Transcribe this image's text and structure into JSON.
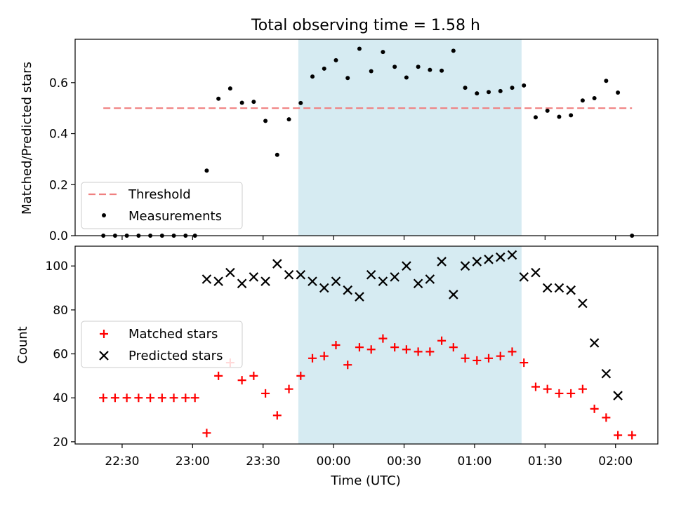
{
  "chart_data": [
    {
      "type": "scatter",
      "title": "Total observing time = 1.58 h",
      "ylabel": "Matched/Predicted stars",
      "xlabel": "",
      "ylim": [
        0,
        0.77
      ],
      "yticks": [
        0.0,
        0.2,
        0.4,
        0.6
      ],
      "ytick_labels": [
        "0.0",
        "0.2",
        "0.4",
        "0.6"
      ],
      "shaded_span": {
        "start": "23:45",
        "end": "01:20",
        "color": "#add8e6"
      },
      "threshold": {
        "name": "Threshold",
        "value": 0.5,
        "x_start": "22:22",
        "x_end": "02:07",
        "color": "#f08080",
        "style": "dashed"
      },
      "legend": {
        "placement": "lower-left",
        "entries": [
          "Threshold",
          "Measurements"
        ]
      },
      "series": [
        {
          "name": "Measurements",
          "marker": "dot",
          "color": "#000000",
          "points": [
            [
              "22:22",
              0.0
            ],
            [
              "22:27",
              0.0
            ],
            [
              "22:32",
              0.0
            ],
            [
              "22:37",
              0.0
            ],
            [
              "22:42",
              0.0
            ],
            [
              "22:47",
              0.0
            ],
            [
              "22:52",
              0.0
            ],
            [
              "22:57",
              0.0
            ],
            [
              "23:01",
              0.0
            ],
            [
              "23:06",
              0.255
            ],
            [
              "23:11",
              0.537
            ],
            [
              "23:16",
              0.577
            ],
            [
              "23:21",
              0.521
            ],
            [
              "23:26",
              0.525
            ],
            [
              "23:31",
              0.45
            ],
            [
              "23:36",
              0.317
            ],
            [
              "23:41",
              0.456
            ],
            [
              "23:46",
              0.52
            ],
            [
              "23:51",
              0.624
            ],
            [
              "23:56",
              0.655
            ],
            [
              "00:01",
              0.688
            ],
            [
              "00:06",
              0.618
            ],
            [
              "00:11",
              0.733
            ],
            [
              "00:16",
              0.645
            ],
            [
              "00:21",
              0.72
            ],
            [
              "00:26",
              0.662
            ],
            [
              "00:31",
              0.62
            ],
            [
              "00:36",
              0.662
            ],
            [
              "00:41",
              0.65
            ],
            [
              "00:46",
              0.647
            ],
            [
              "00:51",
              0.725
            ],
            [
              "00:56",
              0.58
            ],
            [
              "01:01",
              0.558
            ],
            [
              "01:06",
              0.563
            ],
            [
              "01:11",
              0.567
            ],
            [
              "01:16",
              0.58
            ],
            [
              "01:21",
              0.589
            ],
            [
              "01:26",
              0.464
            ],
            [
              "01:31",
              0.49
            ],
            [
              "01:36",
              0.466
            ],
            [
              "01:41",
              0.472
            ],
            [
              "01:46",
              0.53
            ],
            [
              "01:51",
              0.539
            ],
            [
              "01:56",
              0.607
            ],
            [
              "02:01",
              0.561
            ],
            [
              "02:07",
              0.0
            ]
          ]
        }
      ]
    },
    {
      "type": "scatter",
      "title": "",
      "ylabel": "Count",
      "xlabel": "Time (UTC)",
      "ylim": [
        19,
        109
      ],
      "yticks": [
        20,
        40,
        60,
        80,
        100
      ],
      "ytick_labels": [
        "20",
        "40",
        "60",
        "80",
        "100"
      ],
      "xticks": [
        "22:30",
        "23:00",
        "23:30",
        "00:00",
        "00:30",
        "01:00",
        "01:30",
        "02:00"
      ],
      "xlim": [
        "22:10",
        "02:18"
      ],
      "shaded_span": {
        "start": "23:45",
        "end": "01:20",
        "color": "#add8e6"
      },
      "legend": {
        "placement": "center-left",
        "entries": [
          "Matched stars",
          "Predicted stars"
        ]
      },
      "series": [
        {
          "name": "Matched stars",
          "marker": "plus",
          "color": "#ff0000",
          "points": [
            [
              "22:22",
              40
            ],
            [
              "22:27",
              40
            ],
            [
              "22:32",
              40
            ],
            [
              "22:37",
              40
            ],
            [
              "22:42",
              40
            ],
            [
              "22:47",
              40
            ],
            [
              "22:52",
              40
            ],
            [
              "22:57",
              40
            ],
            [
              "23:01",
              40
            ],
            [
              "23:06",
              24
            ],
            [
              "23:11",
              50
            ],
            [
              "23:16",
              56
            ],
            [
              "23:21",
              48
            ],
            [
              "23:26",
              50
            ],
            [
              "23:31",
              42
            ],
            [
              "23:36",
              32
            ],
            [
              "23:41",
              44
            ],
            [
              "23:46",
              50
            ],
            [
              "23:51",
              58
            ],
            [
              "23:56",
              59
            ],
            [
              "00:01",
              64
            ],
            [
              "00:06",
              55
            ],
            [
              "00:11",
              63
            ],
            [
              "00:16",
              62
            ],
            [
              "00:21",
              67
            ],
            [
              "00:26",
              63
            ],
            [
              "00:31",
              62
            ],
            [
              "00:36",
              61
            ],
            [
              "00:41",
              61
            ],
            [
              "00:46",
              66
            ],
            [
              "00:51",
              63
            ],
            [
              "00:56",
              58
            ],
            [
              "01:01",
              57
            ],
            [
              "01:06",
              58
            ],
            [
              "01:11",
              59
            ],
            [
              "01:16",
              61
            ],
            [
              "01:21",
              56
            ],
            [
              "01:26",
              45
            ],
            [
              "01:31",
              44
            ],
            [
              "01:36",
              42
            ],
            [
              "01:41",
              42
            ],
            [
              "01:46",
              44
            ],
            [
              "01:51",
              35
            ],
            [
              "01:56",
              31
            ],
            [
              "02:01",
              23
            ],
            [
              "02:07",
              23
            ]
          ]
        },
        {
          "name": "Predicted stars",
          "marker": "x",
          "color": "#000000",
          "points": [
            [
              "23:06",
              94
            ],
            [
              "23:11",
              93
            ],
            [
              "23:16",
              97
            ],
            [
              "23:21",
              92
            ],
            [
              "23:26",
              95
            ],
            [
              "23:31",
              93
            ],
            [
              "23:36",
              101
            ],
            [
              "23:41",
              96
            ],
            [
              "23:46",
              96
            ],
            [
              "23:51",
              93
            ],
            [
              "23:56",
              90
            ],
            [
              "00:01",
              93
            ],
            [
              "00:06",
              89
            ],
            [
              "00:11",
              86
            ],
            [
              "00:16",
              96
            ],
            [
              "00:21",
              93
            ],
            [
              "00:26",
              95
            ],
            [
              "00:31",
              100
            ],
            [
              "00:36",
              92
            ],
            [
              "00:41",
              94
            ],
            [
              "00:46",
              102
            ],
            [
              "00:51",
              87
            ],
            [
              "00:56",
              100
            ],
            [
              "01:01",
              102
            ],
            [
              "01:06",
              103
            ],
            [
              "01:11",
              104
            ],
            [
              "01:16",
              105
            ],
            [
              "01:21",
              95
            ],
            [
              "01:26",
              97
            ],
            [
              "01:31",
              90
            ],
            [
              "01:36",
              90
            ],
            [
              "01:41",
              89
            ],
            [
              "01:46",
              83
            ],
            [
              "01:51",
              65
            ],
            [
              "01:56",
              51
            ],
            [
              "02:01",
              41
            ]
          ]
        }
      ]
    }
  ]
}
